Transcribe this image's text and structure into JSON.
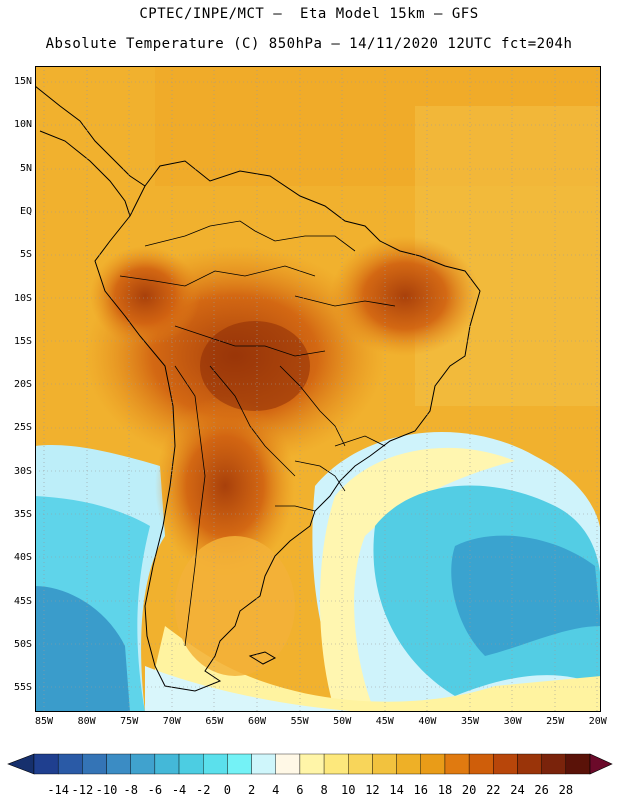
{
  "title_line1": "CPTEC/INPE/MCT –  Eta Model 15km – GFS",
  "title_line2": "Absolute Temperature (C) 850hPa – 14/11/2020 12UTC fct=204h",
  "lat_labels": [
    "15N",
    "10N",
    "5N",
    "EQ",
    "5S",
    "10S",
    "15S",
    "20S",
    "25S",
    "30S",
    "35S",
    "40S",
    "45S",
    "50S",
    "55S"
  ],
  "lon_labels": [
    "85W",
    "80W",
    "75W",
    "70W",
    "65W",
    "60W",
    "55W",
    "50W",
    "45W",
    "40W",
    "35W",
    "30W",
    "25W",
    "20W"
  ],
  "colorbar": {
    "ticks": [
      "-14",
      "-12",
      "-10",
      "-8",
      "-6",
      "-4",
      "-2",
      "0",
      "2",
      "4",
      "6",
      "8",
      "10",
      "12",
      "14",
      "16",
      "18",
      "20",
      "22",
      "24",
      "26",
      "28"
    ],
    "colors": [
      "#1f3f8f",
      "#2a5aa6",
      "#3474b6",
      "#3b8cc4",
      "#40a2ce",
      "#44b8d8",
      "#4ccde2",
      "#5be0ec",
      "#74f2f6",
      "#cff6fb",
      "#fff8e6",
      "#fff5a8",
      "#fde87c",
      "#f8d55a",
      "#f2c23e",
      "#eeb027",
      "#e99c18",
      "#e07a10",
      "#cf5e0a",
      "#b8460a",
      "#9a3409",
      "#7a230b",
      "#5a1208"
    ],
    "left_arrow_color": "#16306d",
    "right_arrow_color": "#6b0a2a"
  }
}
